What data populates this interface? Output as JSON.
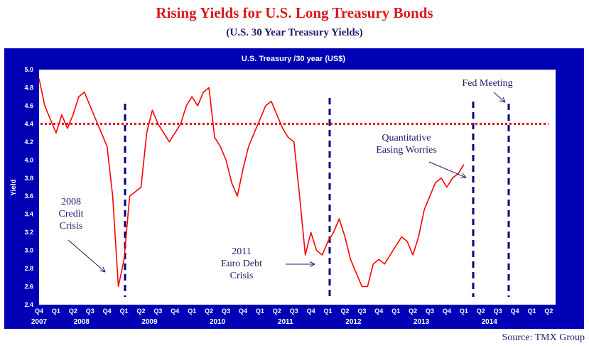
{
  "title": "Rising Yields for U.S. Long Treasury Bonds",
  "subtitle": "(U.S. 30 Year Treasury Yields)",
  "source": "Source: TMX Group",
  "colors": {
    "frame": "#0000b4",
    "plot_bg": "#ffffff",
    "line": "#ff0000",
    "annotation": "#1b1b6b",
    "dashed": "#000080"
  },
  "chart_data": {
    "type": "line",
    "title": "U.S. Treasury /30 year (US$)",
    "ylabel": "Yield",
    "xlabel": "",
    "ylim": [
      2.4,
      5.0
    ],
    "yticks": [
      "5.0",
      "4.8",
      "4.6",
      "4.4",
      "4.2",
      "4.0",
      "3.8",
      "3.6",
      "3.4",
      "3.2",
      "3.0",
      "2.8",
      "2.6",
      "2.4"
    ],
    "quarter_ticks": [
      "Q4",
      "Q1",
      "Q2",
      "Q3",
      "Q4",
      "Q1",
      "Q2",
      "Q3",
      "Q4",
      "Q1",
      "Q2",
      "Q3",
      "Q4",
      "Q1",
      "Q2",
      "Q3",
      "Q4",
      "Q1",
      "Q2",
      "Q3",
      "Q4",
      "Q1",
      "Q2",
      "Q3",
      "Q4",
      "Q1",
      "Q2",
      "Q3",
      "Q4",
      "Q1",
      "Q2"
    ],
    "year_labels": [
      "2007",
      "2008",
      "2009",
      "2010",
      "2011",
      "2012",
      "2013",
      "2014"
    ],
    "grid": false,
    "legend": "none",
    "series": [
      {
        "x": [
          "2007-10",
          "2007-11",
          "2007-12",
          "2008-01",
          "2008-02",
          "2008-03",
          "2008-04",
          "2008-05",
          "2008-06",
          "2008-07",
          "2008-08",
          "2008-09",
          "2008-10",
          "2008-11",
          "2008-12",
          "2009-01",
          "2009-02",
          "2009-03",
          "2009-04",
          "2009-05",
          "2009-06",
          "2009-07",
          "2009-08",
          "2009-09",
          "2009-10",
          "2009-11",
          "2009-12",
          "2010-01",
          "2010-02",
          "2010-03",
          "2010-04",
          "2010-05",
          "2010-06",
          "2010-07",
          "2010-08",
          "2010-09",
          "2010-10",
          "2010-11",
          "2010-12",
          "2011-01",
          "2011-02",
          "2011-03",
          "2011-04",
          "2011-05",
          "2011-06",
          "2011-07",
          "2011-08",
          "2011-09",
          "2011-10",
          "2011-11",
          "2011-12",
          "2012-01",
          "2012-02",
          "2012-03",
          "2012-04",
          "2012-05",
          "2012-06",
          "2012-07",
          "2012-08",
          "2012-09",
          "2012-10",
          "2012-11",
          "2012-12",
          "2013-01",
          "2013-02",
          "2013-03",
          "2013-04",
          "2013-05",
          "2013-06",
          "2013-07",
          "2013-08",
          "2013-09",
          "2013-10",
          "2013-11",
          "2013-12",
          "2014-01"
        ],
        "values": [
          4.9,
          4.6,
          4.45,
          4.3,
          4.5,
          4.35,
          4.5,
          4.7,
          4.75,
          4.6,
          4.45,
          4.3,
          4.15,
          3.6,
          2.6,
          2.9,
          3.6,
          3.65,
          3.7,
          4.3,
          4.55,
          4.4,
          4.3,
          4.2,
          4.3,
          4.4,
          4.6,
          4.7,
          4.6,
          4.75,
          4.8,
          4.25,
          4.15,
          4.0,
          3.75,
          3.6,
          3.9,
          4.15,
          4.3,
          4.45,
          4.6,
          4.65,
          4.5,
          4.35,
          4.25,
          4.2,
          3.6,
          2.95,
          3.2,
          3.0,
          2.95,
          3.1,
          3.2,
          3.35,
          3.15,
          2.9,
          2.75,
          2.6,
          2.6,
          2.85,
          2.9,
          2.85,
          2.95,
          3.05,
          3.15,
          3.1,
          2.95,
          3.15,
          3.45,
          3.6,
          3.75,
          3.8,
          3.7,
          3.8,
          3.85,
          3.95
        ]
      }
    ],
    "reference_line": {
      "y": 4.4
    },
    "annotations": [
      {
        "lines": [
          "2008",
          "Credit",
          "Crisis"
        ]
      },
      {
        "lines": [
          "2011",
          "Euro Debt",
          "Crisis"
        ]
      },
      {
        "lines": [
          "Quantitative",
          "Easing Worries"
        ]
      },
      {
        "lines": [
          "Fed Meeting"
        ]
      }
    ]
  }
}
